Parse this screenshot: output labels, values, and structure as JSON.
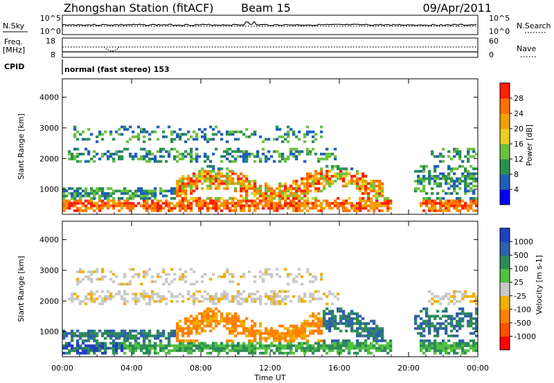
{
  "header": {
    "station": "Zhongshan Station (fitACF)",
    "beam": "Beam 15",
    "date": "09/Apr/2011"
  },
  "noise_panel": {
    "left_label": "N.Sky",
    "left_ticks": [
      "10^5",
      "10^0"
    ],
    "right_ticks": [
      "10^5",
      "10^0"
    ],
    "right_label": "N.Search"
  },
  "freq_panel": {
    "left_label_line1": "Freq.",
    "left_label_line2": "[MHz]",
    "left_ticks": [
      "18",
      "8"
    ],
    "right_ticks": [
      "60",
      "0"
    ],
    "right_label": "Nave"
  },
  "cpid_panel": {
    "label": "CPID",
    "text": "normal (fast stereo) 153"
  },
  "chart_data": [
    {
      "type": "heatmap",
      "name": "power",
      "ylabel": "Slant Range [km]",
      "y_ticks": [
        "1000",
        "2000",
        "3000",
        "4000"
      ],
      "ylim": [
        180,
        4600
      ],
      "xlim": [
        0,
        24
      ],
      "colorbar_label": "Power [dB]",
      "colorbar_ticks": [
        "4",
        "8",
        "12",
        "16",
        "20",
        "24",
        "28"
      ],
      "colors": [
        "#0000ff",
        "#1f5fb8",
        "#2a9050",
        "#6dc040",
        "#e8d020",
        "#f0a000",
        "#ff7000",
        "#ff2000"
      ]
    },
    {
      "type": "heatmap",
      "name": "velocity",
      "ylabel": "Slant Range [km]",
      "y_ticks": [
        "1000",
        "2000",
        "3000",
        "4000"
      ],
      "ylim": [
        180,
        4600
      ],
      "xlim": [
        0,
        24
      ],
      "xlabel": "Time UT",
      "x_ticks": [
        "00:00",
        "04:00",
        "08:00",
        "12:00",
        "16:00",
        "20:00",
        "00:00"
      ],
      "colorbar_label": "Velocity [m s-1]",
      "colorbar_ticks": [
        "1000",
        "500",
        "100",
        "25",
        "-25",
        "-100",
        "-500",
        "-1000"
      ],
      "colors": [
        "#2040c0",
        "#3060a8",
        "#2e8b57",
        "#50c040",
        "#c8c8c8",
        "#f0b000",
        "#ff8000",
        "#ff5000",
        "#ff0000"
      ]
    }
  ]
}
